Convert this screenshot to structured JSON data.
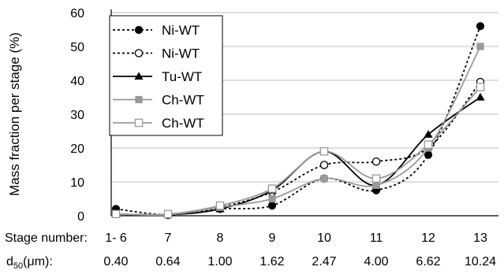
{
  "chart_data": {
    "type": "line",
    "title": "",
    "ylabel": "Mass fraction per stage (%)",
    "xlabel": "",
    "ylim": [
      0,
      60
    ],
    "yticks": [
      0,
      10,
      20,
      30,
      40,
      50,
      60
    ],
    "grid": "horizontal",
    "legend_position": "top-left",
    "categories": [
      "1- 6",
      "7",
      "8",
      "9",
      "10",
      "11",
      "12",
      "13"
    ],
    "category_row_label": "Stage number:",
    "d50_row_label": "d50(μm):",
    "d50_label_parts": {
      "base": "d",
      "sub": "50",
      "rest": "(μm):"
    },
    "d50_values": [
      "0.40",
      "0.64",
      "1.00",
      "1.62",
      "2.47",
      "4.00",
      "6.62",
      "10.24"
    ],
    "series": [
      {
        "name": "Ni-WT",
        "values": [
          2,
          0.3,
          2,
          3,
          11,
          7.5,
          18,
          56
        ],
        "color": "#000000",
        "line": "dotted",
        "marker": "filled-circle"
      },
      {
        "name": "Ni-WT",
        "values": [
          0.5,
          0.2,
          2.5,
          7,
          15,
          16,
          20,
          39.5
        ],
        "color": "#000000",
        "line": "dotted",
        "marker": "open-circle"
      },
      {
        "name": "Tu-WT",
        "values": [
          0.5,
          0.3,
          2,
          7.5,
          19,
          9,
          24,
          35
        ],
        "color": "#000000",
        "line": "solid",
        "marker": "filled-triangle"
      },
      {
        "name": "Ch-WT",
        "values": [
          0.5,
          0.3,
          2.5,
          5,
          11,
          9,
          20,
          50
        ],
        "color": "#999999",
        "line": "solid",
        "marker": "filled-square"
      },
      {
        "name": "Ch-WT",
        "values": [
          0.5,
          0.5,
          3,
          8,
          19,
          11,
          21,
          38
        ],
        "color": "#999999",
        "line": "solid",
        "marker": "open-square"
      }
    ]
  }
}
